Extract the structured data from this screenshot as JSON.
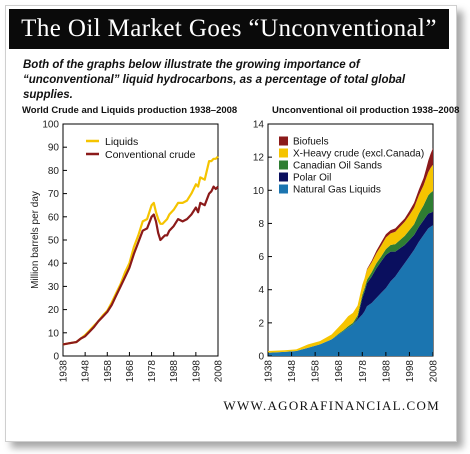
{
  "header": {
    "title": "The Oil Market Goes “Unconventional”",
    "intro": "Both of the graphs below illustrate the growing importance of “unconventional” liquid hydrocarbons, as a percentage of total global supplies."
  },
  "footer": {
    "source": "WWW.AGORAFINANCIAL.COM"
  },
  "colors": {
    "liquids": "#f5c400",
    "conventional": "#8b1a1a",
    "biofuels": "#8b1a1a",
    "x_heavy": "#f5c400",
    "oil_sands": "#2e7d32",
    "polar": "#0a0f5e",
    "ngl": "#1b75b0"
  },
  "chart_data": [
    {
      "type": "line",
      "title": "World Crude and Liquids production 1938–2008",
      "ylabel": "Million barrels per day",
      "xlabel": "",
      "xlim": [
        1938,
        2008
      ],
      "ylim": [
        0,
        100
      ],
      "x_ticks": [
        1938,
        1948,
        1958,
        1968,
        1978,
        1988,
        1998,
        2008
      ],
      "y_ticks": [
        0,
        10,
        20,
        30,
        40,
        50,
        60,
        70,
        80,
        90,
        100
      ],
      "legend": "top-left",
      "grid": false,
      "series": [
        {
          "name": "Liquids",
          "color": "#f5c400",
          "x": [
            1938,
            1941,
            1944,
            1946,
            1948,
            1950,
            1952,
            1954,
            1956,
            1958,
            1960,
            1962,
            1964,
            1966,
            1968,
            1970,
            1972,
            1974,
            1976,
            1978,
            1979,
            1980,
            1981,
            1982,
            1983,
            1984,
            1985,
            1986,
            1988,
            1990,
            1992,
            1994,
            1996,
            1998,
            1999,
            2000,
            2002,
            2004,
            2005,
            2006,
            2007,
            2008
          ],
          "y": [
            5,
            5.5,
            6,
            7.5,
            9,
            11,
            13,
            15,
            17.5,
            19.5,
            23,
            27,
            31,
            36,
            40,
            47,
            52,
            58,
            59,
            65,
            66,
            62,
            59,
            57,
            57,
            58,
            59,
            61,
            63,
            66,
            66,
            67,
            70,
            74,
            73,
            77,
            76,
            84,
            84,
            85,
            85,
            86
          ]
        },
        {
          "name": "Conventional crude",
          "color": "#8b1a1a",
          "x": [
            1938,
            1941,
            1944,
            1946,
            1948,
            1950,
            1952,
            1954,
            1956,
            1958,
            1960,
            1962,
            1964,
            1966,
            1968,
            1970,
            1972,
            1974,
            1976,
            1978,
            1979,
            1980,
            1981,
            1982,
            1983,
            1984,
            1985,
            1986,
            1988,
            1990,
            1992,
            1994,
            1996,
            1998,
            1999,
            2000,
            2002,
            2004,
            2005,
            2006,
            2007,
            2008
          ],
          "y": [
            5,
            5.5,
            6,
            7.5,
            8.5,
            10.5,
            12.5,
            15,
            17,
            19,
            22,
            26,
            30,
            34,
            38,
            44,
            49,
            54,
            55,
            60,
            61,
            58,
            53,
            50,
            51,
            52,
            52,
            54,
            56,
            59,
            58,
            59,
            61,
            64,
            62,
            66,
            65,
            70,
            71,
            73,
            72,
            73
          ]
        }
      ]
    },
    {
      "type": "area",
      "stacked": true,
      "title": "Unconventional oil production 1938–2008",
      "xlabel": "",
      "ylabel": "",
      "xlim": [
        1938,
        2008
      ],
      "ylim": [
        0,
        14
      ],
      "x_ticks": [
        1938,
        1948,
        1958,
        1968,
        1978,
        1988,
        1998,
        2008
      ],
      "y_ticks": [
        0,
        2,
        4,
        6,
        8,
        10,
        12,
        14
      ],
      "legend": "top-left",
      "grid": false,
      "x": [
        1938,
        1945,
        1950,
        1955,
        1960,
        1965,
        1968,
        1970,
        1972,
        1974,
        1976,
        1978,
        1979,
        1980,
        1982,
        1984,
        1986,
        1988,
        1990,
        1992,
        1994,
        1996,
        1998,
        2000,
        2002,
        2004,
        2005,
        2006,
        2007,
        2008
      ],
      "series": [
        {
          "name": "Natural Gas Liquids",
          "color": "#1b75b0",
          "values": [
            0.2,
            0.25,
            0.3,
            0.5,
            0.7,
            1.0,
            1.3,
            1.5,
            1.7,
            1.9,
            2.2,
            2.5,
            2.7,
            3.0,
            3.2,
            3.5,
            3.8,
            4.1,
            4.5,
            4.8,
            5.2,
            5.6,
            6.0,
            6.4,
            6.9,
            7.3,
            7.5,
            7.7,
            7.8,
            7.9
          ]
        },
        {
          "name": "Polar Oil",
          "color": "#0a0f5e",
          "values": [
            0,
            0,
            0,
            0,
            0,
            0,
            0,
            0,
            0,
            0,
            0.1,
            1.0,
            1.2,
            1.4,
            1.6,
            1.8,
            1.9,
            2.0,
            1.8,
            1.5,
            1.3,
            1.1,
            1.0,
            0.9,
            0.9,
            0.9,
            0.9,
            0.9,
            0.85,
            0.8
          ]
        },
        {
          "name": "Canadian Oil Sands",
          "color": "#2e7d32",
          "values": [
            0,
            0,
            0,
            0,
            0,
            0,
            0.05,
            0.05,
            0.1,
            0.1,
            0.15,
            0.2,
            0.2,
            0.2,
            0.25,
            0.3,
            0.3,
            0.35,
            0.4,
            0.45,
            0.5,
            0.55,
            0.6,
            0.65,
            0.8,
            0.9,
            1.0,
            1.1,
            1.2,
            1.25
          ]
        },
        {
          "name": "X-Heavy crude (excl.Canada)",
          "color": "#f5c400",
          "values": [
            0.1,
            0.1,
            0.1,
            0.2,
            0.2,
            0.3,
            0.4,
            0.5,
            0.6,
            0.6,
            0.6,
            0.6,
            0.6,
            0.6,
            0.6,
            0.6,
            0.65,
            0.7,
            0.7,
            0.75,
            0.8,
            0.85,
            0.9,
            1.0,
            1.1,
            1.2,
            1.3,
            1.4,
            1.5,
            1.6
          ]
        },
        {
          "name": "Biofuels",
          "color": "#8b1a1a",
          "values": [
            0,
            0,
            0,
            0,
            0,
            0,
            0,
            0,
            0,
            0,
            0,
            0,
            0,
            0.05,
            0.1,
            0.15,
            0.2,
            0.2,
            0.2,
            0.2,
            0.2,
            0.2,
            0.25,
            0.3,
            0.35,
            0.45,
            0.55,
            0.7,
            0.85,
            1.0
          ]
        }
      ]
    }
  ]
}
